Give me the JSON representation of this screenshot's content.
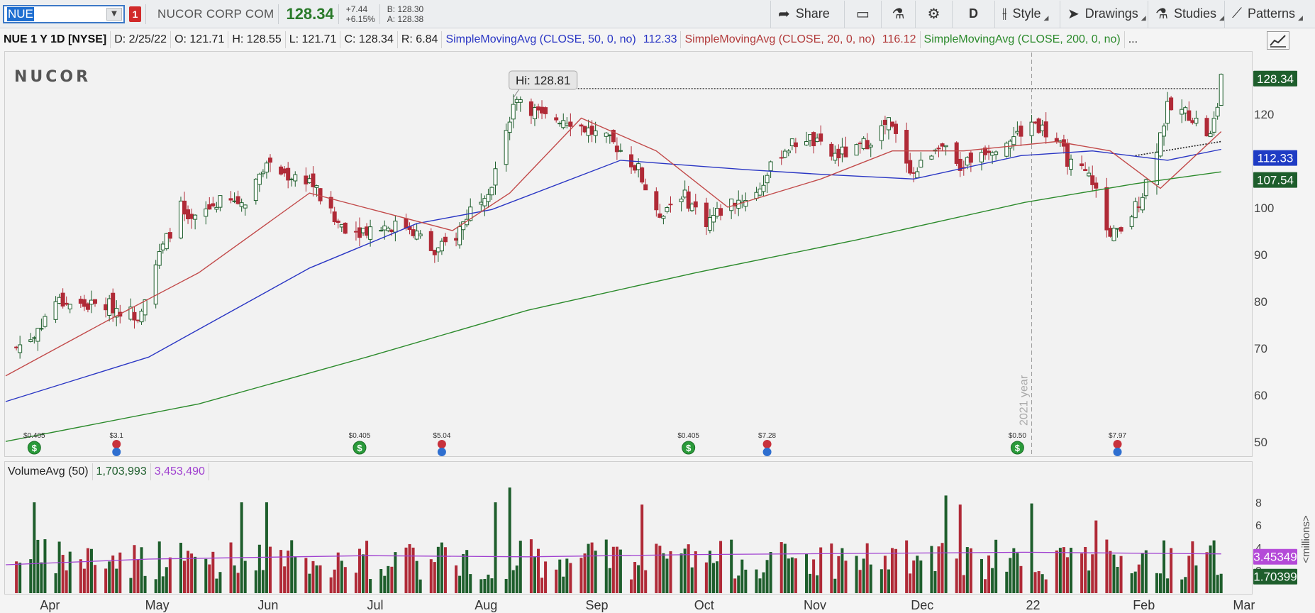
{
  "toolbar": {
    "symbol": "NUE",
    "alert_count": "1",
    "company_name": "NUCOR CORP COM",
    "last_price": "128.34",
    "net_change": "+7.44",
    "pct_change": "+6.15%",
    "bid": "B: 128.30",
    "ask": "A: 128.38",
    "share_label": "Share",
    "aggregation_label": "D",
    "style_label": "Style",
    "drawings_label": "Drawings",
    "studies_label": "Studies",
    "patterns_label": "Patterns"
  },
  "header": {
    "chart_label": "NUE 1 Y 1D [NYSE]",
    "date": "D: 2/25/22",
    "open": "O: 121.71",
    "high": "H: 128.55",
    "low": "L: 121.71",
    "close": "C: 128.34",
    "range": "R: 6.84",
    "sma50_label": "SimpleMovingAvg (CLOSE, 50, 0, no)",
    "sma50_value": "112.33",
    "sma20_label": "SimpleMovingAvg (CLOSE, 20, 0, no)",
    "sma20_value": "116.12",
    "sma200_label": "SimpleMovingAvg (CLOSE, 200, 0, no)",
    "more": "..."
  },
  "logo_text": "NUCOR",
  "annotations": {
    "high_tooltip": "Hi: 128.81",
    "year_marker": "2021 year"
  },
  "badges": {
    "price": "128.34",
    "sma50": "112.33",
    "sma200": "107.54",
    "vol_avg": "3.45349",
    "volume": "1.70399"
  },
  "volume_header": {
    "label": "VolumeAvg (50)",
    "volume": "1,703,993",
    "average": "3,453,490"
  },
  "colors": {
    "up": "#1e5e2c",
    "down": "#b02a37",
    "sma50": "#2a36c4",
    "sma20": "#c24a4a",
    "sma200": "#2b8a2b",
    "vol_avg": "#a040d0",
    "price_badge": "#1e5e2c",
    "sma50_badge": "#1f3cc4",
    "sma200_badge": "#1e5e2c",
    "vol_avg_badge": "#b44ad8"
  },
  "events": [
    {
      "label": "$0.405",
      "icon": "dividend-icon",
      "date": "2021-03-30"
    },
    {
      "label": "$3.1",
      "icon": "earnings-icon",
      "date": "2021-04-22"
    },
    {
      "label": "$0.405",
      "icon": "dividend-icon",
      "date": "2021-06-29"
    },
    {
      "label": "$5.04",
      "icon": "earnings-icon",
      "date": "2021-07-22"
    },
    {
      "label": "$0.405",
      "icon": "dividend-icon",
      "date": "2021-09-29"
    },
    {
      "label": "$7.28",
      "icon": "earnings-icon",
      "date": "2021-10-21"
    },
    {
      "label": "$0.50",
      "icon": "dividend-icon",
      "date": "2021-12-30"
    },
    {
      "label": "$7.97",
      "icon": "earnings-icon",
      "date": "2022-01-27"
    }
  ],
  "chart_data": [
    {
      "type": "candlestick",
      "title": "",
      "x_range": [
        "2021-03-22",
        "2022-03-05"
      ],
      "x_ticks": [
        "Apr",
        "May",
        "Jun",
        "Jul",
        "Aug",
        "Sep",
        "Oct",
        "Nov",
        "Dec",
        "22",
        "Feb",
        "Mar"
      ],
      "y_ticks": [
        50,
        60,
        70,
        80,
        90,
        100,
        110,
        120,
        128.34
      ],
      "ylim": [
        47,
        133
      ],
      "grid": false,
      "resistance_line": 125.3,
      "anchors": [
        {
          "date": "2021-03-25",
          "close": 70
        },
        {
          "date": "2021-03-30",
          "close": 73
        },
        {
          "date": "2021-04-05",
          "close": 80
        },
        {
          "date": "2021-04-12",
          "close": 79
        },
        {
          "date": "2021-04-20",
          "close": 79
        },
        {
          "date": "2021-04-28",
          "close": 77
        },
        {
          "date": "2021-05-03",
          "close": 88
        },
        {
          "date": "2021-05-10",
          "close": 100
        },
        {
          "date": "2021-05-12",
          "close": 96
        },
        {
          "date": "2021-05-20",
          "close": 101
        },
        {
          "date": "2021-05-28",
          "close": 101
        },
        {
          "date": "2021-06-02",
          "close": 109
        },
        {
          "date": "2021-06-08",
          "close": 107
        },
        {
          "date": "2021-06-15",
          "close": 106
        },
        {
          "date": "2021-06-22",
          "close": 97
        },
        {
          "date": "2021-06-28",
          "close": 95
        },
        {
          "date": "2021-07-06",
          "close": 96
        },
        {
          "date": "2021-07-13",
          "close": 96
        },
        {
          "date": "2021-07-20",
          "close": 90
        },
        {
          "date": "2021-07-26",
          "close": 94
        },
        {
          "date": "2021-07-31",
          "close": 101
        },
        {
          "date": "2021-08-05",
          "close": 105
        },
        {
          "date": "2021-08-09",
          "close": 117
        },
        {
          "date": "2021-08-12",
          "close": 124
        },
        {
          "date": "2021-08-19",
          "close": 119
        },
        {
          "date": "2021-08-26",
          "close": 119
        },
        {
          "date": "2021-09-02",
          "close": 116
        },
        {
          "date": "2021-09-09",
          "close": 113
        },
        {
          "date": "2021-09-15",
          "close": 108
        },
        {
          "date": "2021-09-20",
          "close": 98
        },
        {
          "date": "2021-09-27",
          "close": 103
        },
        {
          "date": "2021-10-04",
          "close": 97
        },
        {
          "date": "2021-10-11",
          "close": 101
        },
        {
          "date": "2021-10-18",
          "close": 103
        },
        {
          "date": "2021-10-25",
          "close": 112
        },
        {
          "date": "2021-11-01",
          "close": 115
        },
        {
          "date": "2021-11-08",
          "close": 111
        },
        {
          "date": "2021-11-15",
          "close": 112
        },
        {
          "date": "2021-11-24",
          "close": 118
        },
        {
          "date": "2021-12-01",
          "close": 107
        },
        {
          "date": "2021-12-08",
          "close": 114
        },
        {
          "date": "2021-12-13",
          "close": 108
        },
        {
          "date": "2021-12-20",
          "close": 112
        },
        {
          "date": "2021-12-29",
          "close": 115
        },
        {
          "date": "2022-01-04",
          "close": 118
        },
        {
          "date": "2022-01-10",
          "close": 114
        },
        {
          "date": "2022-01-14",
          "close": 109
        },
        {
          "date": "2022-01-20",
          "close": 106
        },
        {
          "date": "2022-01-24",
          "close": 95
        },
        {
          "date": "2022-01-28",
          "close": 94
        },
        {
          "date": "2022-02-03",
          "close": 103
        },
        {
          "date": "2022-02-07",
          "close": 113
        },
        {
          "date": "2022-02-10",
          "close": 121
        },
        {
          "date": "2022-02-16",
          "close": 120
        },
        {
          "date": "2022-02-22",
          "close": 115
        },
        {
          "date": "2022-02-24",
          "close": 121.71
        },
        {
          "date": "2022-02-25",
          "close": 128.34
        }
      ],
      "last_candle": {
        "open": 121.71,
        "high": 128.55,
        "low": 121.71,
        "close": 128.34
      },
      "series": [
        {
          "name": "SimpleMovingAvg (CLOSE, 50, 0, no)",
          "points": [
            [
              "2021-03-22",
              58.5
            ],
            [
              "2021-05-01",
              68
            ],
            [
              "2021-06-15",
              87
            ],
            [
              "2021-07-15",
              96.5
            ],
            [
              "2021-08-05",
              99.5
            ],
            [
              "2021-09-10",
              110
            ],
            [
              "2021-10-15",
              108
            ],
            [
              "2021-11-05",
              107
            ],
            [
              "2021-12-01",
              106
            ],
            [
              "2021-12-31",
              111
            ],
            [
              "2022-01-20",
              112
            ],
            [
              "2022-02-10",
              110
            ],
            [
              "2022-02-25",
              112.33
            ]
          ]
        },
        {
          "name": "SimpleMovingAvg (CLOSE, 20, 0, no)",
          "points": [
            [
              "2021-03-22",
              64
            ],
            [
              "2021-04-20",
              76
            ],
            [
              "2021-05-15",
              86
            ],
            [
              "2021-06-15",
              103
            ],
            [
              "2021-07-05",
              99
            ],
            [
              "2021-07-25",
              95
            ],
            [
              "2021-08-10",
              103
            ],
            [
              "2021-08-30",
              119
            ],
            [
              "2021-09-20",
              112
            ],
            [
              "2021-10-10",
              100
            ],
            [
              "2021-11-05",
              106
            ],
            [
              "2021-11-25",
              112
            ],
            [
              "2021-12-15",
              112
            ],
            [
              "2022-01-10",
              114
            ],
            [
              "2022-01-25",
              112
            ],
            [
              "2022-02-08",
              104
            ],
            [
              "2022-02-25",
              116.12
            ]
          ]
        },
        {
          "name": "SimpleMovingAvg (CLOSE, 200, 0, no)",
          "points": [
            [
              "2021-03-22",
              50
            ],
            [
              "2021-05-15",
              58
            ],
            [
              "2021-07-01",
              68
            ],
            [
              "2021-08-15",
              78
            ],
            [
              "2021-10-01",
              86
            ],
            [
              "2021-11-15",
              93
            ],
            [
              "2022-01-01",
              101
            ],
            [
              "2022-02-01",
              105
            ],
            [
              "2022-02-25",
              107.54
            ]
          ]
        }
      ]
    },
    {
      "type": "bar",
      "title": "VolumeAvg (50)",
      "ylabel": "<millions>",
      "y_ticks": [
        2,
        4,
        6,
        8
      ],
      "ylim": [
        0,
        10
      ],
      "average_series": {
        "name": "VolumeAvg (50)",
        "points": [
          [
            "2021-03-22",
            2.5
          ],
          [
            "2021-05-01",
            3.0
          ],
          [
            "2021-07-01",
            3.3
          ],
          [
            "2021-08-15",
            3.2
          ],
          [
            "2021-10-01",
            3.4
          ],
          [
            "2022-01-01",
            3.6
          ],
          [
            "2022-02-25",
            3.45349
          ]
        ]
      },
      "spikes": [
        {
          "date": "2021-03-30",
          "value": 8.0
        },
        {
          "date": "2021-05-27",
          "value": 8.0
        },
        {
          "date": "2021-06-03",
          "value": 8.0
        },
        {
          "date": "2021-08-06",
          "value": 8.0
        },
        {
          "date": "2021-08-10",
          "value": 9.3
        },
        {
          "date": "2021-09-16",
          "value": 7.8
        },
        {
          "date": "2021-12-10",
          "value": 8.6
        },
        {
          "date": "2021-12-14",
          "value": 7.8
        },
        {
          "date": "2022-01-03",
          "value": 7.9
        },
        {
          "date": "2022-01-21",
          "value": 6.4
        },
        {
          "date": "2022-02-25",
          "value": 1.70399
        }
      ]
    }
  ]
}
